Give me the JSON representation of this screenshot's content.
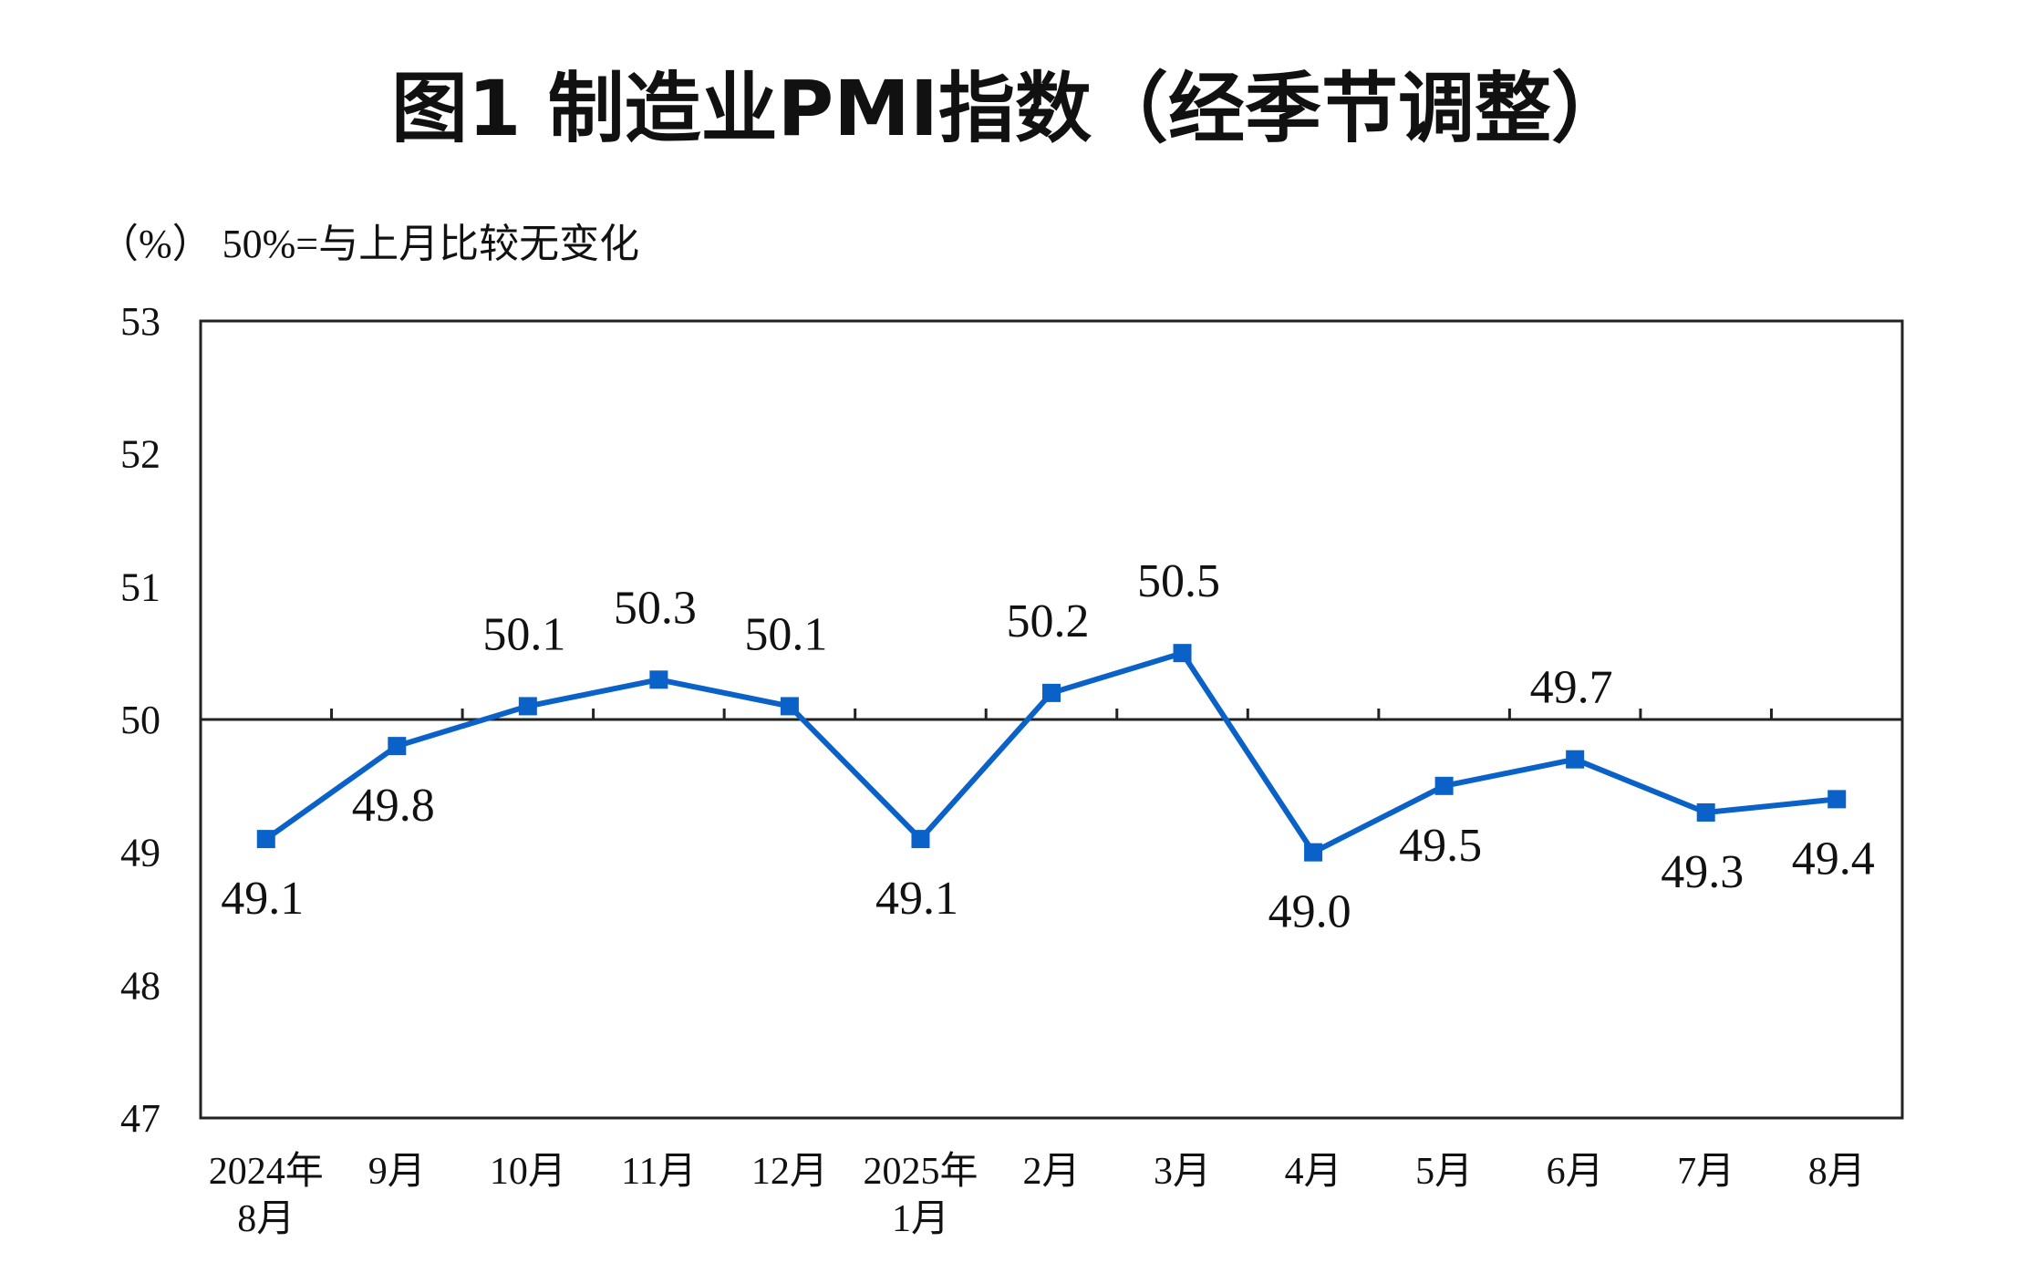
{
  "chart_data": {
    "type": "line",
    "title": "图1  制造业PMI指数（经季节调整）",
    "unit_note": "（%）  50%=与上月比较无变化",
    "categories": [
      [
        "2024年",
        "8月"
      ],
      [
        "9月"
      ],
      [
        "10月"
      ],
      [
        "11月"
      ],
      [
        "12月"
      ],
      [
        "2025年",
        "1月"
      ],
      [
        "2月"
      ],
      [
        "3月"
      ],
      [
        "4月"
      ],
      [
        "5月"
      ],
      [
        "6月"
      ],
      [
        "7月"
      ],
      [
        "8月"
      ]
    ],
    "series": [
      {
        "values": [
          49.1,
          49.8,
          50.1,
          50.3,
          50.1,
          49.1,
          50.2,
          50.5,
          49.0,
          49.5,
          49.7,
          49.3,
          49.4
        ],
        "labels": [
          "49.1",
          "49.8",
          "50.1",
          "50.3",
          "50.1",
          "49.1",
          "50.2",
          "50.5",
          "49.0",
          "49.5",
          "49.7",
          "49.3",
          "49.4"
        ],
        "color": "#0a62c8"
      }
    ],
    "ylim": [
      47,
      53
    ],
    "yticks": [
      "47",
      "48",
      "49",
      "50",
      "51",
      "52",
      "53"
    ],
    "reference_line": 50,
    "grid": false,
    "legend": "none"
  }
}
